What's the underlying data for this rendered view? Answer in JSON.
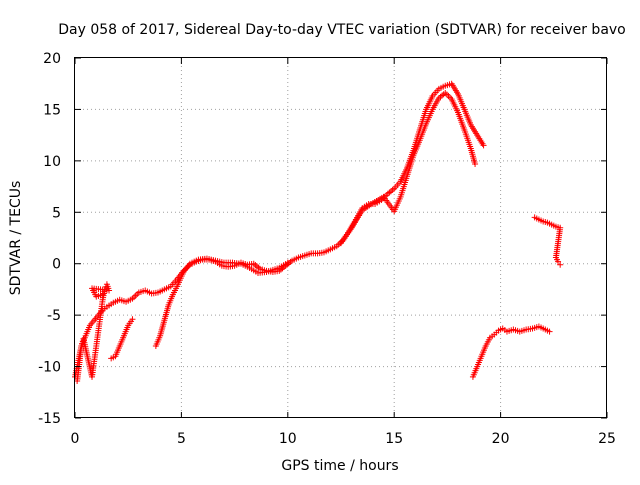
{
  "chart_data": {
    "type": "scatter",
    "title": "Day 058 of 2017, Sidereal Day-to-day VTEC variation (SDTVAR) for receiver bavo",
    "xlabel": "GPS time / hours",
    "ylabel": "SDTVAR / TECUs",
    "xlim": [
      0,
      25
    ],
    "ylim": [
      -15,
      20
    ],
    "xticks": [
      0,
      5,
      10,
      15,
      20,
      25
    ],
    "yticks": [
      -15,
      -10,
      -5,
      0,
      5,
      10,
      15,
      20
    ],
    "grid": true,
    "marker": "plus",
    "marker_color": "#ff0000",
    "series": [
      {
        "values": [
          [
            0.0,
            -11.0
          ],
          [
            0.1,
            -10.0
          ],
          [
            0.2,
            -9.0
          ],
          [
            0.3,
            -8.0
          ],
          [
            0.5,
            -7.0
          ],
          [
            0.7,
            -6.0
          ],
          [
            0.9,
            -5.5
          ],
          [
            1.1,
            -5.0
          ],
          [
            1.3,
            -4.5
          ],
          [
            1.5,
            -4.2
          ],
          [
            1.8,
            -3.8
          ],
          [
            2.1,
            -3.5
          ],
          [
            2.4,
            -3.7
          ],
          [
            2.7,
            -3.4
          ],
          [
            3.0,
            -2.8
          ],
          [
            3.3,
            -2.6
          ],
          [
            3.6,
            -2.9
          ],
          [
            3.9,
            -2.8
          ],
          [
            4.2,
            -2.5
          ],
          [
            4.5,
            -2.2
          ],
          [
            4.8,
            -1.5
          ],
          [
            5.1,
            -0.7
          ],
          [
            5.4,
            -0.1
          ],
          [
            5.7,
            0.2
          ],
          [
            6.0,
            0.4
          ],
          [
            6.3,
            0.4
          ],
          [
            6.6,
            0.2
          ],
          [
            6.9,
            -0.2
          ],
          [
            7.2,
            -0.3
          ],
          [
            7.5,
            -0.2
          ],
          [
            7.8,
            0.1
          ],
          [
            8.1,
            -0.1
          ],
          [
            8.4,
            0.0
          ],
          [
            8.7,
            -0.5
          ],
          [
            9.0,
            -0.7
          ],
          [
            9.3,
            -0.8
          ],
          [
            9.6,
            -0.7
          ],
          [
            9.9,
            -0.2
          ],
          [
            10.2,
            0.3
          ],
          [
            10.5,
            0.6
          ],
          [
            10.8,
            0.8
          ],
          [
            11.1,
            1.0
          ],
          [
            11.4,
            1.0
          ],
          [
            11.7,
            1.1
          ],
          [
            12.0,
            1.4
          ],
          [
            12.3,
            1.7
          ],
          [
            12.6,
            2.3
          ],
          [
            12.9,
            3.2
          ],
          [
            13.2,
            4.3
          ],
          [
            13.5,
            5.4
          ],
          [
            13.8,
            5.8
          ],
          [
            14.1,
            5.8
          ],
          [
            14.4,
            6.2
          ],
          [
            14.7,
            6.8
          ],
          [
            15.0,
            7.3
          ],
          [
            15.3,
            8.0
          ],
          [
            15.6,
            9.3
          ],
          [
            15.9,
            11.0
          ],
          [
            16.2,
            13.0
          ],
          [
            16.5,
            15.0
          ],
          [
            16.8,
            16.3
          ],
          [
            17.1,
            17.0
          ],
          [
            17.4,
            17.3
          ],
          [
            17.7,
            17.5
          ],
          [
            18.0,
            16.5
          ],
          [
            18.3,
            15.0
          ],
          [
            18.6,
            13.5
          ],
          [
            18.9,
            12.5
          ],
          [
            19.2,
            11.5
          ]
        ]
      },
      {
        "values": [
          [
            3.8,
            -8.0
          ],
          [
            4.0,
            -7.0
          ],
          [
            4.2,
            -5.5
          ],
          [
            4.4,
            -4.0
          ],
          [
            4.6,
            -3.0
          ],
          [
            4.8,
            -2.2
          ],
          [
            5.1,
            -0.8
          ],
          [
            5.4,
            0.0
          ],
          [
            5.8,
            0.4
          ],
          [
            6.2,
            0.5
          ],
          [
            6.6,
            0.3
          ],
          [
            7.0,
            0.1
          ],
          [
            7.4,
            0.1
          ],
          [
            7.8,
            0.0
          ],
          [
            8.2,
            -0.4
          ],
          [
            8.6,
            -0.9
          ],
          [
            9.0,
            -0.8
          ],
          [
            9.3,
            -0.6
          ],
          [
            9.6,
            -0.4
          ],
          [
            10.0,
            0.1
          ],
          [
            12.5,
            2.0
          ],
          [
            13.0,
            3.5
          ],
          [
            13.5,
            5.2
          ],
          [
            14.0,
            5.9
          ],
          [
            14.5,
            6.5
          ],
          [
            15.0,
            5.1
          ],
          [
            15.3,
            6.5
          ],
          [
            15.6,
            8.5
          ],
          [
            15.9,
            10.5
          ],
          [
            16.2,
            12.0
          ],
          [
            16.5,
            13.6
          ],
          [
            16.8,
            15.0
          ],
          [
            17.1,
            16.1
          ],
          [
            17.4,
            16.6
          ],
          [
            17.7,
            16.0
          ],
          [
            18.0,
            14.7
          ],
          [
            18.3,
            13.0
          ],
          [
            18.6,
            11.2
          ],
          [
            18.8,
            9.7
          ]
        ]
      },
      {
        "values": [
          [
            0.1,
            -11.4
          ],
          [
            0.2,
            -9.8
          ],
          [
            0.3,
            -8.0
          ],
          [
            0.4,
            -7.3
          ],
          [
            0.8,
            -11.0
          ],
          [
            0.9,
            -9.5
          ],
          [
            1.0,
            -8.0
          ],
          [
            1.1,
            -6.5
          ],
          [
            1.2,
            -5.0
          ],
          [
            1.3,
            -3.5
          ],
          [
            1.4,
            -2.5
          ],
          [
            1.5,
            -2.0
          ],
          [
            1.6,
            -2.6
          ],
          [
            0.8,
            -2.4
          ],
          [
            1.0,
            -3.2
          ],
          [
            1.3,
            -3.0
          ],
          [
            1.7,
            -9.2
          ],
          [
            1.9,
            -9.0
          ],
          [
            2.1,
            -8.0
          ],
          [
            2.3,
            -7.0
          ],
          [
            2.5,
            -6.0
          ],
          [
            2.7,
            -5.4
          ]
        ]
      },
      {
        "values": [
          [
            18.7,
            -11.0
          ],
          [
            18.9,
            -10.0
          ],
          [
            19.1,
            -9.0
          ],
          [
            19.3,
            -8.0
          ],
          [
            19.5,
            -7.2
          ],
          [
            19.7,
            -6.9
          ],
          [
            19.9,
            -6.5
          ],
          [
            20.1,
            -6.3
          ],
          [
            20.3,
            -6.6
          ],
          [
            20.6,
            -6.4
          ],
          [
            20.9,
            -6.6
          ],
          [
            21.2,
            -6.4
          ],
          [
            21.5,
            -6.3
          ],
          [
            21.8,
            -6.1
          ],
          [
            22.1,
            -6.4
          ],
          [
            22.3,
            -6.6
          ]
        ]
      },
      {
        "values": [
          [
            21.6,
            4.5
          ],
          [
            21.8,
            4.3
          ],
          [
            22.0,
            4.1
          ],
          [
            22.2,
            4.0
          ],
          [
            22.4,
            3.8
          ],
          [
            22.6,
            3.6
          ],
          [
            22.8,
            3.5
          ],
          [
            22.6,
            0.6
          ],
          [
            22.7,
            0.2
          ],
          [
            22.8,
            -0.1
          ]
        ]
      }
    ]
  }
}
